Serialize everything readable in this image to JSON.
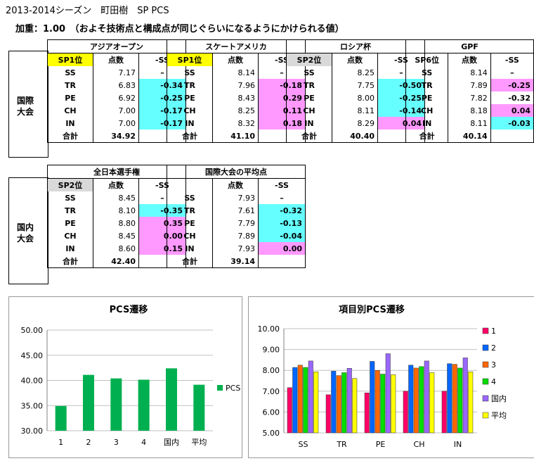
{
  "header": {
    "title": "2013-2014シーズン　町田樹　SP PCS",
    "subtitle": "加重：1.00　（およそ技術点と構成点が同じぐらいになるようにかけられる値）"
  },
  "intl": {
    "label1": "国際",
    "label2": "大会",
    "events": [
      {
        "name": "アジアオープン",
        "rank": "SP1位",
        "rank_style": "y",
        "score_label": "点数",
        "diff_label": "-SS",
        "rows": [
          [
            "SS",
            "7.17",
            "–",
            ""
          ],
          [
            "TR",
            "6.83",
            "-0.34",
            "cy"
          ],
          [
            "PE",
            "6.92",
            "-0.25",
            "cy"
          ],
          [
            "CH",
            "7.00",
            "-0.17",
            "cy"
          ],
          [
            "IN",
            "7.00",
            "-0.17",
            "cy"
          ]
        ],
        "total_label": "合計",
        "total": "34.92"
      },
      {
        "name": "スケートアメリカ",
        "rank": "SP1位",
        "rank_style": "y",
        "score_label": "点数",
        "diff_label": "-SS",
        "rows": [
          [
            "SS",
            "8.14",
            "–",
            ""
          ],
          [
            "TR",
            "7.96",
            "-0.18",
            "pk"
          ],
          [
            "PE",
            "8.43",
            "0.29",
            "pk"
          ],
          [
            "CH",
            "8.25",
            "0.11",
            "pk"
          ],
          [
            "IN",
            "8.32",
            "0.18",
            "pk"
          ]
        ],
        "total_label": "合計",
        "total": "41.10"
      },
      {
        "name": "ロシア杯",
        "rank": "SP2位",
        "rank_style": "g",
        "score_label": "点数",
        "diff_label": "-SS",
        "rows": [
          [
            "SS",
            "8.25",
            "–",
            ""
          ],
          [
            "TR",
            "7.75",
            "-0.50",
            "cy"
          ],
          [
            "PE",
            "8.00",
            "-0.25",
            "cy"
          ],
          [
            "CH",
            "8.11",
            "-0.14",
            "cy"
          ],
          [
            "IN",
            "8.29",
            "0.04",
            "pk"
          ]
        ],
        "total_label": "合計",
        "total": "40.40"
      },
      {
        "name": "GPF",
        "rank": "SP6位",
        "rank_style": "",
        "score_label": "点数",
        "diff_label": "-SS",
        "rows": [
          [
            "SS",
            "8.14",
            "–",
            ""
          ],
          [
            "TR",
            "7.89",
            "-0.25",
            "pk"
          ],
          [
            "PE",
            "7.82",
            "-0.32",
            ""
          ],
          [
            "CH",
            "8.18",
            "0.04",
            "pk"
          ],
          [
            "IN",
            "8.11",
            "-0.03",
            "cy"
          ]
        ],
        "total_label": "合計",
        "total": "40.14"
      }
    ]
  },
  "domestic": {
    "label1": "国内",
    "label2": "大会",
    "events": [
      {
        "name": "全日本選手権",
        "rank": "SP2位",
        "rank_style": "g",
        "score_label": "点数",
        "diff_label": "-SS",
        "rows": [
          [
            "SS",
            "8.45",
            "–",
            ""
          ],
          [
            "TR",
            "8.10",
            "-0.35",
            "cy"
          ],
          [
            "PE",
            "8.80",
            "0.35",
            "pk"
          ],
          [
            "CH",
            "8.45",
            "0.00",
            "pk"
          ],
          [
            "IN",
            "8.60",
            "0.15",
            "pk"
          ]
        ],
        "total_label": "合計",
        "total": "42.40"
      },
      {
        "name": "国際大会の平均点",
        "rank": "",
        "rank_style": "",
        "score_label": "点数",
        "diff_label": "-SS",
        "rows": [
          [
            "SS",
            "7.93",
            "–",
            ""
          ],
          [
            "TR",
            "7.61",
            "-0.32",
            "cy"
          ],
          [
            "PE",
            "7.79",
            "-0.13",
            "cy"
          ],
          [
            "CH",
            "7.89",
            "-0.04",
            "cy"
          ],
          [
            "IN",
            "7.93",
            "0.00",
            "pk"
          ]
        ],
        "total_label": "合計",
        "total": "39.14"
      }
    ]
  },
  "chart_data": [
    {
      "type": "bar",
      "title": "PCS遷移",
      "categories": [
        "1",
        "2",
        "3",
        "4",
        "国内",
        "平均"
      ],
      "series": [
        {
          "name": "PCS",
          "values": [
            34.92,
            41.1,
            40.4,
            40.14,
            42.4,
            39.14
          ],
          "color": "#00b050"
        }
      ],
      "ylim": [
        30,
        50
      ],
      "yticks": [
        "30.00",
        "35.00",
        "40.00",
        "45.00",
        "50.00"
      ],
      "grid": true,
      "legend": "right"
    },
    {
      "type": "bar",
      "title": "項目別PCS遷移",
      "categories": [
        "SS",
        "TR",
        "PE",
        "CH",
        "IN"
      ],
      "series": [
        {
          "name": "1",
          "values": [
            7.17,
            6.83,
            6.92,
            7.0,
            7.0
          ],
          "color": "#ff0066"
        },
        {
          "name": "2",
          "values": [
            8.14,
            7.96,
            8.43,
            8.25,
            8.32
          ],
          "color": "#0066ff"
        },
        {
          "name": "3",
          "values": [
            8.25,
            7.75,
            8.0,
            8.11,
            8.29
          ],
          "color": "#ff6600"
        },
        {
          "name": "4",
          "values": [
            8.14,
            7.89,
            7.82,
            8.18,
            8.11
          ],
          "color": "#00dd00"
        },
        {
          "name": "国内",
          "values": [
            8.45,
            8.1,
            8.8,
            8.45,
            8.6
          ],
          "color": "#9966ff"
        },
        {
          "name": "平均",
          "values": [
            7.93,
            7.61,
            7.79,
            7.89,
            7.93
          ],
          "color": "#ffff00"
        }
      ],
      "ylim": [
        5,
        10
      ],
      "yticks": [
        "5.00",
        "6.00",
        "7.00",
        "8.00",
        "9.00",
        "10.00"
      ],
      "grid": true,
      "legend": "right"
    }
  ]
}
